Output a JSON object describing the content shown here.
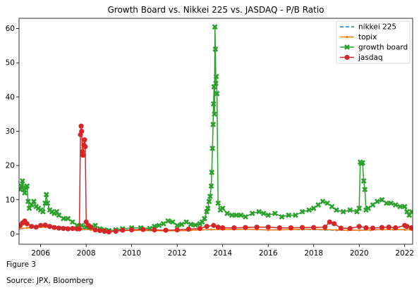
{
  "caption": {
    "figure": "Figure 3",
    "source": "Source: JPX, Bloomberg"
  },
  "chart_data": {
    "type": "line",
    "title": "Growth Board vs. Nikkei 225 vs. JASDAQ - P/B Ratio",
    "xlabel": "",
    "ylabel": "",
    "xlim": [
      2005.05,
      2022.35
    ],
    "ylim": [
      -3,
      63
    ],
    "x_ticks": [
      2006,
      2008,
      2010,
      2012,
      2014,
      2016,
      2018,
      2020,
      2022
    ],
    "y_ticks": [
      0,
      10,
      20,
      30,
      40,
      50,
      60
    ],
    "grid": false,
    "legend_position": "top-right",
    "series": [
      {
        "name": "nikkei 225",
        "color": "#1f77b4",
        "line_style": "dashed",
        "marker": "none",
        "x": [
          2005.1,
          2006,
          2007,
          2008,
          2009,
          2010,
          2011,
          2012,
          2013,
          2014,
          2015,
          2016,
          2017,
          2018,
          2019,
          2020,
          2021,
          2022.3
        ],
        "y": [
          1.5,
          2.2,
          2.0,
          1.5,
          1.0,
          1.1,
          1.0,
          0.95,
          1.2,
          1.3,
          1.4,
          1.2,
          1.3,
          1.3,
          1.1,
          1.1,
          1.3,
          1.2
        ]
      },
      {
        "name": "topix",
        "color": "#ff7f0e",
        "line_style": "solid",
        "marker": "point",
        "x": [
          2005.1,
          2005.4,
          2005.8,
          2006.2,
          2006.6,
          2007.0,
          2007.4,
          2007.8,
          2008.2,
          2008.6,
          2009.0,
          2009.5,
          2010.0,
          2010.5,
          2011.0,
          2011.5,
          2012.0,
          2012.5,
          2013.0,
          2013.5,
          2014.0,
          2014.5,
          2015.0,
          2015.5,
          2016.0,
          2016.5,
          2017.0,
          2017.5,
          2018.0,
          2018.5,
          2019.0,
          2019.5,
          2020.0,
          2020.5,
          2021.0,
          2021.5,
          2022.0,
          2022.3
        ],
        "y": [
          1.6,
          1.8,
          2.0,
          2.0,
          1.8,
          1.7,
          1.6,
          1.4,
          1.2,
          1.0,
          0.9,
          1.0,
          1.05,
          1.0,
          0.95,
          0.9,
          0.95,
          1.0,
          1.2,
          1.3,
          1.3,
          1.35,
          1.4,
          1.3,
          1.15,
          1.2,
          1.3,
          1.35,
          1.4,
          1.25,
          1.15,
          1.1,
          1.1,
          1.15,
          1.3,
          1.3,
          1.25,
          1.2
        ]
      },
      {
        "name": "growth board",
        "color": "#2ca02c",
        "line_style": "solid",
        "marker": "x",
        "x": [
          2005.1,
          2005.15,
          2005.2,
          2005.25,
          2005.3,
          2005.35,
          2005.4,
          2005.45,
          2005.5,
          2005.6,
          2005.7,
          2005.8,
          2005.9,
          2006.0,
          2006.1,
          2006.2,
          2006.25,
          2006.3,
          2006.4,
          2006.5,
          2006.6,
          2006.7,
          2006.8,
          2007.0,
          2007.2,
          2007.4,
          2007.6,
          2007.8,
          2008.0,
          2008.2,
          2008.4,
          2008.6,
          2008.8,
          2009.0,
          2009.3,
          2009.6,
          2010.0,
          2010.4,
          2010.8,
          2011.0,
          2011.2,
          2011.4,
          2011.6,
          2011.8,
          2012.0,
          2012.2,
          2012.4,
          2012.6,
          2012.8,
          2013.0,
          2013.1,
          2013.2,
          2013.3,
          2013.35,
          2013.4,
          2013.45,
          2013.5,
          2013.52,
          2013.55,
          2013.58,
          2013.6,
          2013.62,
          2013.64,
          2013.66,
          2013.68,
          2013.7,
          2013.72,
          2013.75,
          2013.8,
          2013.9,
          2014.0,
          2014.2,
          2014.4,
          2014.6,
          2014.8,
          2015.0,
          2015.3,
          2015.6,
          2015.8,
          2016.0,
          2016.3,
          2016.6,
          2016.9,
          2017.2,
          2017.5,
          2017.8,
          2018.0,
          2018.2,
          2018.4,
          2018.6,
          2018.8,
          2019.0,
          2019.3,
          2019.6,
          2019.9,
          2020.0,
          2020.05,
          2020.1,
          2020.15,
          2020.2,
          2020.25,
          2020.3,
          2020.4,
          2020.6,
          2020.8,
          2021.0,
          2021.2,
          2021.4,
          2021.6,
          2021.8,
          2022.0,
          2022.1,
          2022.2,
          2022.3
        ],
        "y": [
          13,
          14,
          15.5,
          13,
          12,
          13.5,
          14,
          9.5,
          7.5,
          8.5,
          9.5,
          8,
          7.5,
          7,
          6.5,
          9,
          11.5,
          9,
          7,
          6.5,
          6,
          6.5,
          5.5,
          4.5,
          4.5,
          3.5,
          2.5,
          2.5,
          2.0,
          2.0,
          2.5,
          1.5,
          1.2,
          1.0,
          1.2,
          1.5,
          1.8,
          1.8,
          1.6,
          2.2,
          2.5,
          3.0,
          3.8,
          3.5,
          2.5,
          2.8,
          3.5,
          2.8,
          2.6,
          3.0,
          3.5,
          4.5,
          6.5,
          7.5,
          9.5,
          11.0,
          14.0,
          18.0,
          25.0,
          32.0,
          38.0,
          43.0,
          35.0,
          60.5,
          54.0,
          44.0,
          46.0,
          41.0,
          9.0,
          7.0,
          7.5,
          6.0,
          5.5,
          5.5,
          5.5,
          5.0,
          6.0,
          6.5,
          6.0,
          5.5,
          6.0,
          5.0,
          5.5,
          5.5,
          6.5,
          7.0,
          7.5,
          8.5,
          9.5,
          9.0,
          8.0,
          7.0,
          6.5,
          7.0,
          6.5,
          7.5,
          21.0,
          20.5,
          20.8,
          15.5,
          13.0,
          7.0,
          7.5,
          8.5,
          9.5,
          10.0,
          9.0,
          9.0,
          8.5,
          8.0,
          8.0,
          6.5,
          5.5,
          6.5
        ]
      },
      {
        "name": "jasdaq",
        "color": "#d62728",
        "line_style": "solid",
        "marker": "o",
        "x": [
          2005.1,
          2005.2,
          2005.3,
          2005.4,
          2005.6,
          2005.8,
          2006.0,
          2006.2,
          2006.4,
          2006.6,
          2006.8,
          2007.0,
          2007.2,
          2007.4,
          2007.6,
          2007.7,
          2007.75,
          2007.78,
          2007.8,
          2007.83,
          2007.86,
          2007.9,
          2007.93,
          2007.96,
          2008.0,
          2008.1,
          2008.2,
          2008.4,
          2008.6,
          2008.8,
          2009.0,
          2009.3,
          2009.6,
          2010.0,
          2010.5,
          2011.0,
          2011.5,
          2012.0,
          2012.5,
          2013.0,
          2013.3,
          2013.6,
          2013.8,
          2014.0,
          2014.5,
          2015.0,
          2015.5,
          2016.0,
          2016.5,
          2017.0,
          2017.5,
          2018.0,
          2018.5,
          2018.7,
          2018.9,
          2019.2,
          2019.6,
          2020.0,
          2020.3,
          2020.6,
          2021.0,
          2021.3,
          2021.6,
          2022.0,
          2022.1,
          2022.3
        ],
        "y": [
          2.5,
          3.2,
          3.8,
          3.0,
          2.2,
          2.0,
          2.5,
          2.6,
          2.2,
          1.9,
          1.7,
          1.6,
          1.5,
          1.6,
          1.5,
          1.5,
          29.0,
          31.5,
          30.0,
          24.0,
          23.0,
          26.0,
          27.5,
          25.5,
          3.5,
          2.5,
          2.0,
          1.2,
          1.0,
          0.8,
          0.6,
          0.8,
          1.1,
          1.2,
          1.3,
          1.2,
          1.1,
          1.2,
          1.4,
          1.6,
          2.2,
          2.5,
          2.0,
          1.8,
          1.8,
          1.9,
          2.0,
          2.0,
          1.8,
          1.8,
          1.9,
          1.9,
          2.0,
          3.5,
          3.0,
          1.7,
          1.6,
          2.2,
          1.8,
          1.7,
          1.9,
          2.0,
          1.8,
          2.5,
          2.2,
          1.8
        ]
      }
    ]
  }
}
